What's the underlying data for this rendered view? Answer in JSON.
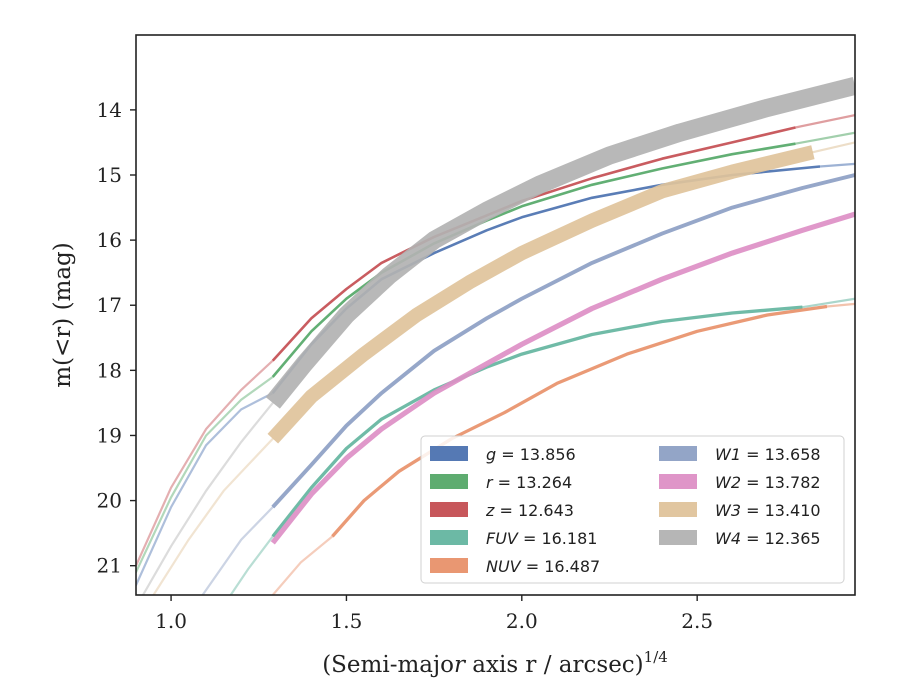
{
  "chart_data": {
    "type": "line",
    "xlabel": "(Semi-major axis r / arcsec)",
    "xlabel_var": "r",
    "xlabel_exponent": "1/4",
    "ylabel": "m(<r) (mag)",
    "xlim": [
      0.9,
      2.95
    ],
    "ylim": [
      21.45,
      12.85
    ],
    "y_inverted": true,
    "grid": false,
    "x_ticks": [
      "1.0",
      "1.5",
      "2.0",
      "2.5"
    ],
    "y_ticks": [
      "14",
      "15",
      "16",
      "17",
      "18",
      "19",
      "20",
      "21"
    ],
    "legend": {
      "placement": "lower-right",
      "columns": 2
    },
    "series": [
      {
        "name": "g = 13.856",
        "label": "g",
        "value": "13.856",
        "color": "#4c72b0",
        "band_width": 0.04,
        "x": [
          1.29,
          1.4,
          1.5,
          1.6,
          1.75,
          1.9,
          2.0,
          2.2,
          2.4,
          2.6,
          2.85
        ],
        "y": [
          18.35,
          17.6,
          17.05,
          16.6,
          16.2,
          15.85,
          15.65,
          15.35,
          15.15,
          15.0,
          14.87
        ],
        "x_ext": [
          0.9,
          1.0,
          1.1,
          1.2,
          1.29
        ],
        "y_ext": [
          21.3,
          20.1,
          19.15,
          18.6,
          18.35
        ],
        "x_ext_r": [
          2.85,
          2.95
        ],
        "y_ext_r": [
          14.87,
          14.83
        ]
      },
      {
        "name": "r = 13.264",
        "label": "r",
        "value": "13.264",
        "color": "#55a868",
        "band_width": 0.04,
        "x": [
          1.29,
          1.4,
          1.5,
          1.6,
          1.75,
          1.9,
          2.0,
          2.2,
          2.4,
          2.6,
          2.78
        ],
        "y": [
          18.1,
          17.4,
          16.9,
          16.5,
          16.05,
          15.7,
          15.48,
          15.15,
          14.9,
          14.68,
          14.52
        ],
        "x_ext": [
          0.9,
          1.0,
          1.1,
          1.2,
          1.29
        ],
        "y_ext": [
          21.1,
          19.95,
          19.0,
          18.45,
          18.1
        ],
        "x_ext_r": [
          2.78,
          2.95
        ],
        "y_ext_r": [
          14.52,
          14.35
        ]
      },
      {
        "name": "z = 12.643",
        "label": "z",
        "value": "12.643",
        "color": "#c44e52",
        "band_width": 0.04,
        "x": [
          1.29,
          1.4,
          1.5,
          1.6,
          1.75,
          1.9,
          2.0,
          2.2,
          2.4,
          2.6,
          2.78
        ],
        "y": [
          17.85,
          17.2,
          16.75,
          16.35,
          15.95,
          15.62,
          15.4,
          15.05,
          14.75,
          14.5,
          14.27
        ],
        "x_ext": [
          0.9,
          1.0,
          1.1,
          1.2,
          1.29
        ],
        "y_ext": [
          21.0,
          19.8,
          18.9,
          18.3,
          17.85
        ],
        "x_ext_r": [
          2.78,
          2.95
        ],
        "y_ext_r": [
          14.27,
          14.08
        ]
      },
      {
        "name": "FUV = 16.181",
        "label": "FUV",
        "value": "16.181",
        "color": "#64b5a0",
        "band_width": 0.05,
        "x": [
          1.29,
          1.4,
          1.5,
          1.6,
          1.75,
          1.9,
          2.0,
          2.2,
          2.4,
          2.6,
          2.8
        ],
        "y": [
          20.55,
          19.8,
          19.2,
          18.75,
          18.3,
          17.95,
          17.75,
          17.45,
          17.25,
          17.12,
          17.03
        ],
        "x_ext": [
          1.17,
          1.22,
          1.29
        ],
        "y_ext": [
          21.45,
          21.05,
          20.55
        ],
        "x_ext_r": [
          2.8,
          2.95
        ],
        "y_ext_r": [
          17.03,
          16.9
        ]
      },
      {
        "name": "NUV = 16.487",
        "label": "NUV",
        "value": "16.487",
        "color": "#e8916a",
        "band_width": 0.05,
        "x": [
          1.46,
          1.55,
          1.65,
          1.8,
          1.95,
          2.1,
          2.3,
          2.5,
          2.7,
          2.87
        ],
        "y": [
          20.55,
          20.0,
          19.55,
          19.05,
          18.65,
          18.2,
          17.75,
          17.4,
          17.15,
          17.02
        ],
        "x_ext": [
          1.29,
          1.37,
          1.46
        ],
        "y_ext": [
          21.45,
          20.95,
          20.55
        ],
        "x_ext_r": [
          2.87,
          2.95
        ],
        "y_ext_r": [
          17.02,
          16.98
        ]
      },
      {
        "name": "W1 = 13.658",
        "label": "W1",
        "value": "13.658",
        "color": "#8da0c4",
        "band_width": 0.06,
        "x": [
          1.29,
          1.4,
          1.5,
          1.6,
          1.75,
          1.9,
          2.0,
          2.2,
          2.4,
          2.6,
          2.8,
          2.95
        ],
        "y": [
          20.1,
          19.45,
          18.85,
          18.35,
          17.7,
          17.2,
          16.9,
          16.35,
          15.9,
          15.5,
          15.2,
          15.0
        ],
        "x_ext": [
          1.09,
          1.2,
          1.29
        ],
        "y_ext": [
          21.45,
          20.6,
          20.1
        ],
        "x_ext_r": [
          2.95
        ],
        "y_ext_r": [
          15.0
        ]
      },
      {
        "name": "W2 = 13.782",
        "label": "W2",
        "value": "13.782",
        "color": "#dd8fc5",
        "band_width": 0.08,
        "x": [
          1.29,
          1.4,
          1.5,
          1.6,
          1.75,
          1.9,
          2.0,
          2.2,
          2.4,
          2.6,
          2.8,
          2.95
        ],
        "y": [
          20.65,
          19.9,
          19.35,
          18.9,
          18.35,
          17.9,
          17.6,
          17.05,
          16.6,
          16.2,
          15.85,
          15.6
        ],
        "x_ext": [
          1.29
        ],
        "y_ext": [
          20.65
        ],
        "x_ext_r": [
          2.95
        ],
        "y_ext_r": [
          15.6
        ]
      },
      {
        "name": "W3 = 13.410",
        "label": "W3",
        "value": "13.410",
        "color": "#dfc39b",
        "band_width": 0.22,
        "x": [
          1.29,
          1.4,
          1.55,
          1.7,
          1.85,
          2.0,
          2.2,
          2.4,
          2.6,
          2.83
        ],
        "y": [
          19.05,
          18.4,
          17.75,
          17.15,
          16.65,
          16.2,
          15.7,
          15.25,
          14.95,
          14.65
        ],
        "x_ext": [
          0.95,
          1.05,
          1.15,
          1.22,
          1.29
        ],
        "y_ext": [
          21.45,
          20.6,
          19.85,
          19.45,
          19.05
        ],
        "x_ext_r": [
          2.83,
          2.95
        ],
        "y_ext_r": [
          14.65,
          14.5
        ]
      },
      {
        "name": "W4 = 12.365",
        "label": "W4",
        "value": "12.365",
        "color": "#b2b2b2",
        "band_width": 0.28,
        "x": [
          1.29,
          1.38,
          1.5,
          1.62,
          1.75,
          1.9,
          2.05,
          2.25,
          2.45,
          2.7,
          2.95
        ],
        "y": [
          18.5,
          17.9,
          17.15,
          16.55,
          16.0,
          15.55,
          15.15,
          14.7,
          14.35,
          13.97,
          13.63
        ],
        "x_ext": [
          0.92,
          1.0,
          1.1,
          1.2,
          1.29
        ],
        "y_ext": [
          21.45,
          20.7,
          19.85,
          19.1,
          18.5
        ],
        "x_ext_r": [
          2.95
        ],
        "y_ext_r": [
          13.63
        ]
      }
    ]
  }
}
